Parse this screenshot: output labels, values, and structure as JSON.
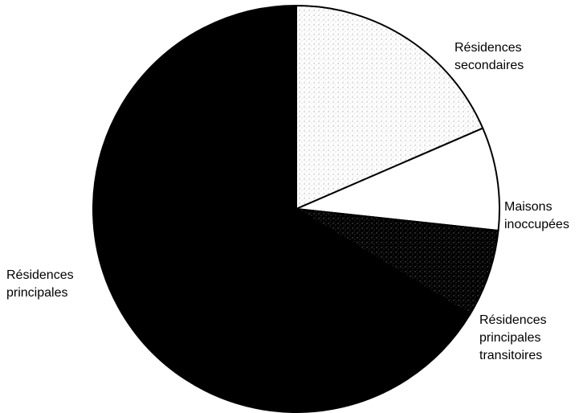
{
  "chart_data": {
    "type": "pie",
    "title": "",
    "start_angle_deg": 0,
    "direction": "clockwise",
    "slices": [
      {
        "label_lines": [
          "Résidences",
          "secondaires"
        ],
        "value": 18.5,
        "fill": "#ffffff",
        "texture": "speckle"
      },
      {
        "label_lines": [
          "Maisons",
          "inoccupées"
        ],
        "value": 8.2,
        "fill": "#ffffff",
        "texture": "none"
      },
      {
        "label_lines": [
          "Résidences",
          "principales",
          "transitoires"
        ],
        "value": 7.0,
        "fill": "#000000",
        "texture": "speckle"
      },
      {
        "label_lines": [
          "Résidences",
          "principales"
        ],
        "value": 66.3,
        "fill": "#000000",
        "texture": "none"
      }
    ],
    "legend": "none",
    "colors": {
      "outline": "#000000",
      "background": "#ffffff"
    }
  }
}
